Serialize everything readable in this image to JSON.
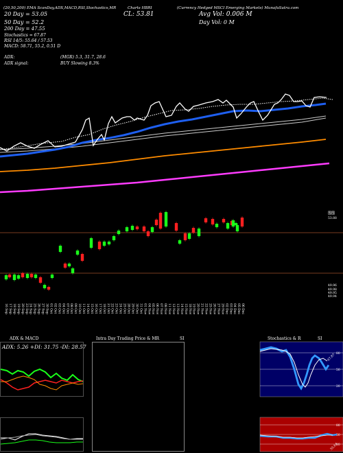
{
  "header": {
    "line1_left": "(20,50,200) EMA ScanDay,ADX,MACD,R",
    "line1_mid": "SI,Stochastics,MR",
    "line1_brand": "Charts HBRI",
    "line1_right": "(Currency Hedged MSCI Emerging Markets) MunafaSutra.com",
    "ema20": "20 Day = 53.05",
    "cl": "CL: 53.81",
    "avgvol": "Avg Vol: 0.006   M",
    "ema50": "50 Day = 52.2",
    "dayvol": "Day Vol: 0   M",
    "ema200": "200 Day = 47.55",
    "stats": [
      "Stochastics = 67.87",
      "RSI 14/5: 55.64 / 57.53",
      "MACD: 58.71, 55.2, 0.51 D"
    ],
    "adx_label": "ADX:",
    "adx_values": "(MGR) 5.3, 31.7, 28.6",
    "adx_signal_label": "ADX signal:",
    "adx_signal_value": "BUY Slowing 8.3%"
  },
  "price_axis": {
    "top_tag": "53.88",
    "bottom_tags": [
      "49.96",
      "49.98",
      "49.95",
      "49.94"
    ],
    "unit_glyph": "围围"
  },
  "dates": [
    "16 Sep",
    "17 Sep",
    "18 Sep",
    "19 Sep",
    "20 Sep",
    "23 Sep",
    "24 Sep",
    "25 Sep",
    "26 Sep",
    "27 Sep",
    "30 Sep",
    "01 Oct",
    "02 Oct",
    "03 Oct",
    "04 Oct",
    "07 Oct",
    "08 Oct",
    "09 Oct",
    "10 Oct",
    "11 Oct",
    "14 Oct",
    "15 Oct",
    "16 Oct",
    "17 Oct",
    "18 Oct",
    "21 Oct",
    "22 Oct",
    "23 Oct",
    "24 Oct",
    "25 Oct",
    "28 Oct",
    "29 Oct",
    "30 Oct",
    "31 Oct",
    "01 Nov",
    "04 Nov",
    "05 Nov",
    "06 Nov",
    "07 Nov",
    "08 Nov",
    "11 Nov",
    "12 Nov",
    "13 Nov",
    "14 Nov",
    "15 Nov",
    "18 Nov",
    "19 Nov",
    "20 Nov",
    "21 Nov",
    "22 Nov",
    "25 Nov",
    "26 Nov",
    "27 Nov",
    "29 Nov",
    "02 Dec",
    "03 Dec",
    "04 Dec",
    "05 Dec",
    "06 Dec"
  ],
  "panels": {
    "adx_title": "ADX  & MACD",
    "adx_readout": "ADX: 5.26  +DI: 31.75 -DI: 28.57",
    "intraday_title": "Intra Day Trading Price  & MR",
    "intraday_si": "SI",
    "stoch_title": "Stochastics & R",
    "stoch_si": "SI",
    "stoch_levels": [
      "80",
      "50",
      "20"
    ],
    "stoch_value": "67.87",
    "rsi_levels": [
      "80",
      "50",
      "20"
    ],
    "rsi_value": "55.64"
  },
  "colors": {
    "background": "#000000",
    "ema20": "#ffffff",
    "ema50": "#1e5ff0",
    "ema100": "#cccccc",
    "ema150": "#ff8c00",
    "ema200": "#ff3cff",
    "bull": "#1aff1a",
    "bear": "#ff2020",
    "grid": "#a0522d",
    "stoch_bg": "#000066",
    "rsi_bg": "#aa0000",
    "stoch_line": "#3399ff"
  },
  "chart_data": {
    "type": "candlestick",
    "price_levels": [
      53.88,
      49.96,
      49.98,
      49.95,
      49.94
    ],
    "series": [
      {
        "name": "20 Day",
        "values": [
          53.05
        ]
      },
      {
        "name": "50 Day",
        "values": [
          52.2
        ]
      },
      {
        "name": "200 Day",
        "values": [
          47.55
        ]
      }
    ],
    "indicators": {
      "stochastics": 67.87,
      "rsi": [
        55.64,
        57.53
      ],
      "macd": [
        58.71,
        55.2,
        0.51
      ],
      "adx": [
        5.26,
        31.75,
        28.57
      ]
    }
  }
}
